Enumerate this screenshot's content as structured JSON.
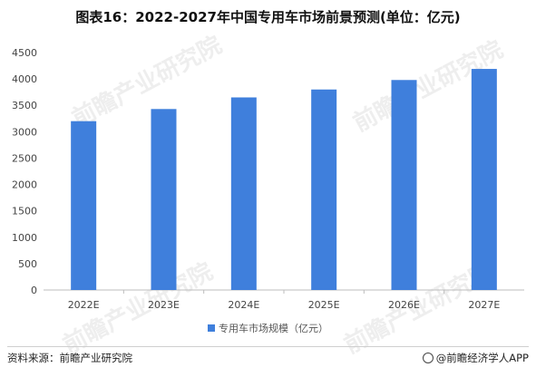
{
  "title": "图表16：2022-2027年中国专用车市场前景预测(单位：亿元)",
  "legend_label": "专用车市场规模（亿元）",
  "footer": {
    "source": "资料来源：前瞻产业研究院",
    "brand": "@前瞻经济学人APP"
  },
  "watermark": "前瞻产业研究院",
  "colors": {
    "bar": "#3f7fdc",
    "axis": "#bdbdbd"
  },
  "chart_data": {
    "type": "bar",
    "categories": [
      "2022E",
      "2023E",
      "2024E",
      "2025E",
      "2026E",
      "2027E"
    ],
    "series": [
      {
        "name": "专用车市场规模（亿元）",
        "values": [
          3200,
          3430,
          3650,
          3800,
          3980,
          4190
        ]
      }
    ],
    "ylim": [
      0,
      4500
    ],
    "yticks": [
      0,
      500,
      1000,
      1500,
      2000,
      2500,
      3000,
      3500,
      4000,
      4500
    ],
    "grid": false,
    "legend": "bottom"
  }
}
